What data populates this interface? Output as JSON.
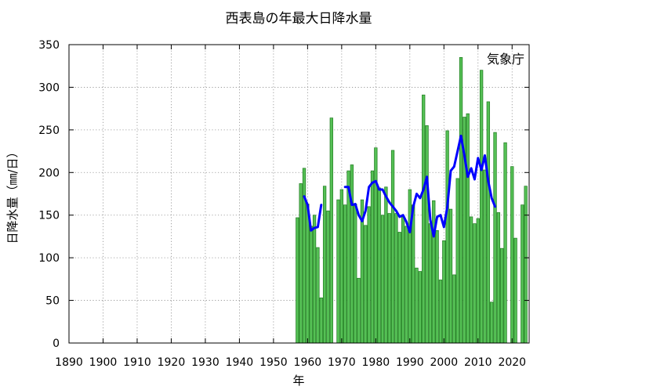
{
  "chart_data": {
    "type": "bar",
    "title": "西表島の年最大日降水量",
    "xlabel": "年",
    "ylabel": "日降水量（㎜/日）",
    "source_label": "気象庁",
    "xlim": [
      1890,
      2025
    ],
    "ylim": [
      0,
      350
    ],
    "xticks": [
      1890,
      1900,
      1910,
      1920,
      1930,
      1940,
      1950,
      1960,
      1970,
      1980,
      1990,
      2000,
      2010,
      2020
    ],
    "yticks": [
      0,
      50,
      100,
      150,
      200,
      250,
      300,
      350
    ],
    "grid": true,
    "x": [
      1957,
      1958,
      1959,
      1960,
      1961,
      1962,
      1963,
      1964,
      1965,
      1966,
      1967,
      1968,
      1969,
      1970,
      1971,
      1972,
      1973,
      1974,
      1975,
      1976,
      1977,
      1978,
      1979,
      1980,
      1981,
      1982,
      1983,
      1984,
      1985,
      1986,
      1987,
      1988,
      1989,
      1990,
      1991,
      1992,
      1993,
      1994,
      1995,
      1996,
      1997,
      1998,
      1999,
      2000,
      2001,
      2002,
      2003,
      2004,
      2005,
      2006,
      2007,
      2008,
      2009,
      2010,
      2011,
      2012,
      2013,
      2014,
      2015,
      2016,
      2017,
      2018,
      2019,
      2020,
      2021,
      2022,
      2023,
      2024
    ],
    "series": [
      {
        "type": "bar",
        "color": "#55c055",
        "edge_color": "#1f7a1f",
        "values": [
          147,
          187,
          205,
          163,
          137,
          150,
          112,
          53,
          184,
          155,
          264,
          null,
          168,
          180,
          162,
          202,
          209,
          163,
          76,
          168,
          138,
          160,
          202,
          229,
          182,
          150,
          183,
          152,
          226,
          152,
          130,
          148,
          137,
          180,
          162,
          88,
          84,
          291,
          255,
          140,
          167,
          132,
          74,
          120,
          249,
          157,
          80,
          193,
          335,
          265,
          269,
          148,
          140,
          146,
          320,
          203,
          283,
          48,
          247,
          153,
          111,
          235,
          null,
          207,
          123,
          null,
          162,
          184
        ]
      },
      {
        "type": "line",
        "color": "#0000ff",
        "values": [
          null,
          null,
          172,
          162,
          132,
          135,
          136,
          162,
          null,
          null,
          null,
          null,
          null,
          null,
          183,
          183,
          162,
          163,
          150,
          143,
          155,
          183,
          188,
          190,
          180,
          180,
          172,
          165,
          160,
          155,
          148,
          150,
          142,
          130,
          160,
          175,
          170,
          180,
          195,
          145,
          125,
          148,
          150,
          136,
          160,
          202,
          207,
          225,
          243,
          220,
          195,
          205,
          192,
          217,
          203,
          220,
          190,
          170,
          160,
          null,
          null,
          null,
          null,
          null,
          null,
          null,
          null,
          null
        ]
      }
    ]
  }
}
